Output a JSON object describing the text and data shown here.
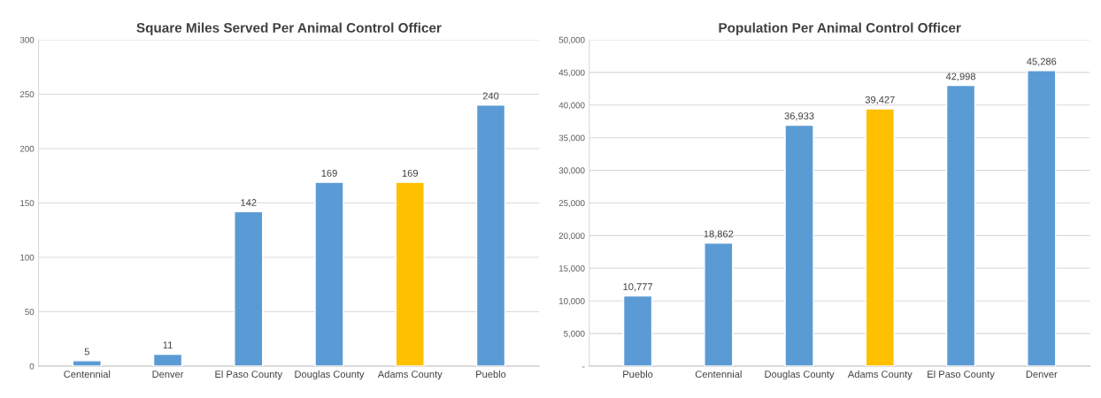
{
  "chart_data": [
    {
      "type": "bar",
      "title": "Square Miles Served Per Animal Control Officer",
      "categories": [
        "Centennial",
        "Denver",
        "El Paso County",
        "Douglas County",
        "Adams County",
        "Pueblo"
      ],
      "values": [
        5,
        11,
        142,
        169,
        169,
        240
      ],
      "colors": [
        "#5b9bd5",
        "#5b9bd5",
        "#5b9bd5",
        "#5b9bd5",
        "#ffc000",
        "#5b9bd5"
      ],
      "ylim": [
        0,
        300
      ],
      "yticks": [
        0,
        50,
        100,
        150,
        200,
        250,
        300
      ],
      "grid": "y",
      "data_labels": true,
      "legend": false
    },
    {
      "type": "bar",
      "title": "Population Per Animal Control Officer",
      "categories": [
        "Pueblo",
        "Centennial",
        "Douglas County",
        "Adams County",
        "El Paso County",
        "Denver"
      ],
      "values": [
        10777,
        18862,
        36933,
        39427,
        42998,
        45286
      ],
      "value_labels": [
        "10,777",
        "18,862",
        "36,933",
        "39,427",
        "42,998",
        "45,286"
      ],
      "colors": [
        "#5b9bd5",
        "#5b9bd5",
        "#5b9bd5",
        "#ffc000",
        "#5b9bd5",
        "#5b9bd5"
      ],
      "ylim": [
        0,
        50000
      ],
      "yticks": [
        {
          "value": 0,
          "label": "-"
        },
        {
          "value": 5000,
          "label": "5,000"
        },
        {
          "value": 10000,
          "label": "10,000"
        },
        {
          "value": 15000,
          "label": "15,000"
        },
        {
          "value": 20000,
          "label": "20,000"
        },
        {
          "value": 25000,
          "label": "25,000"
        },
        {
          "value": 30000,
          "label": "30,000"
        },
        {
          "value": 35000,
          "label": "35,000"
        },
        {
          "value": 40000,
          "label": "40,000"
        },
        {
          "value": 45000,
          "label": "45,000"
        },
        {
          "value": 50000,
          "label": "50,000"
        }
      ],
      "grid": "y",
      "legend": false
    }
  ]
}
